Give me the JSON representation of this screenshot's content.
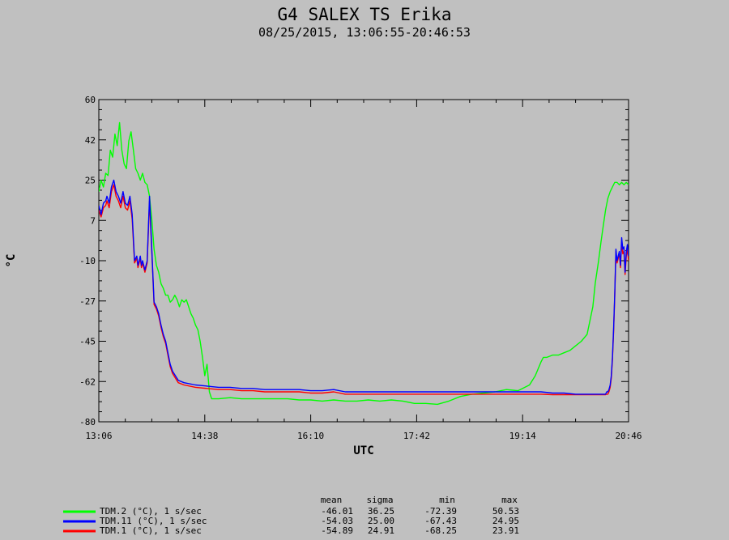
{
  "chart_data": {
    "type": "line",
    "title": "G4 SALEX TS Erika",
    "subtitle": "08/25/2015, 13:06:55-20:46:53",
    "xlabel": "UTC",
    "ylabel": "°C",
    "x_ticks": [
      "13:06",
      "14:38",
      "16:10",
      "17:42",
      "19:14",
      "20:46"
    ],
    "x_range_minutes": [
      786,
      1246
    ],
    "y_ticks": [
      60,
      42,
      25,
      7,
      -10,
      -27,
      -45,
      -62,
      -80
    ],
    "ylim": [
      -80,
      60
    ],
    "grid": false,
    "legend_placement": "bottom-left",
    "stats_headers": [
      "mean",
      "sigma",
      "min",
      "max"
    ],
    "series": [
      {
        "name": "TDM.2 (°C), 1 s/sec",
        "color": "#00ff00",
        "stats": [
          "-46.01",
          "36.25",
          "-72.39",
          "50.53"
        ],
        "x": [
          786,
          788,
          790,
          792,
          794,
          796,
          798,
          800,
          802,
          804,
          806,
          808,
          810,
          812,
          814,
          816,
          818,
          820,
          822,
          824,
          826,
          828,
          830,
          832,
          834,
          836,
          838,
          840,
          842,
          844,
          846,
          848,
          850,
          852,
          854,
          856,
          858,
          860,
          862,
          864,
          866,
          868,
          870,
          872,
          874,
          876,
          878,
          880,
          882,
          884,
          885,
          890,
          900,
          910,
          920,
          930,
          940,
          950,
          960,
          970,
          980,
          990,
          1000,
          1010,
          1020,
          1030,
          1040,
          1050,
          1060,
          1070,
          1080,
          1090,
          1100,
          1110,
          1120,
          1130,
          1140,
          1150,
          1160,
          1165,
          1170,
          1172,
          1175,
          1180,
          1185,
          1190,
          1195,
          1200,
          1205,
          1210,
          1215,
          1217,
          1220,
          1222,
          1224,
          1226,
          1228,
          1230,
          1232,
          1234,
          1236,
          1238,
          1240,
          1242,
          1244,
          1246
        ],
        "y": [
          20,
          25,
          22,
          28,
          27,
          38,
          35,
          45,
          40,
          50,
          38,
          32,
          30,
          42,
          46,
          38,
          30,
          28,
          25,
          28,
          24,
          23,
          18,
          8,
          -5,
          -12,
          -15,
          -20,
          -22,
          -25,
          -25,
          -28,
          -27,
          -25,
          -27,
          -30,
          -27,
          -28,
          -27,
          -30,
          -33,
          -35,
          -38,
          -40,
          -45,
          -52,
          -60,
          -55,
          -67,
          -70,
          -70,
          -70,
          -69.5,
          -70,
          -70,
          -70,
          -70,
          -70,
          -70.5,
          -70.5,
          -71,
          -70.5,
          -71,
          -71,
          -70.5,
          -71,
          -70.5,
          -71,
          -72,
          -72,
          -72.4,
          -71,
          -69,
          -68,
          -67.5,
          -67,
          -66,
          -66.5,
          -64,
          -60,
          -54,
          -52,
          -52,
          -51,
          -51,
          -50,
          -49,
          -47,
          -45,
          -42,
          -30,
          -20,
          -10,
          -2,
          5,
          12,
          17,
          20,
          22,
          24,
          24,
          23,
          24,
          23,
          24,
          23
        ]
      },
      {
        "name": "TDM.11 (°C), 1 s/sec",
        "color": "#0000ff",
        "stats": [
          "-54.03",
          "25.00",
          "-67.43",
          "24.95"
        ],
        "x": [
          786,
          788,
          790,
          792,
          793,
          795,
          797,
          799,
          801,
          803,
          805,
          807,
          809,
          811,
          813,
          815,
          817,
          819,
          820,
          821,
          822,
          823,
          824,
          826,
          828,
          830,
          832,
          834,
          836,
          838,
          840,
          842,
          844,
          846,
          848,
          850,
          855,
          860,
          870,
          880,
          890,
          900,
          910,
          920,
          930,
          940,
          950,
          960,
          970,
          980,
          990,
          1000,
          1010,
          1020,
          1030,
          1040,
          1050,
          1060,
          1070,
          1080,
          1090,
          1100,
          1110,
          1120,
          1130,
          1140,
          1150,
          1160,
          1170,
          1180,
          1190,
          1200,
          1210,
          1220,
          1225,
          1226,
          1227,
          1228,
          1229,
          1230,
          1231,
          1232,
          1233,
          1234,
          1235,
          1236,
          1237,
          1238,
          1239,
          1240,
          1241,
          1242,
          1243,
          1244,
          1245,
          1246
        ],
        "y": [
          14,
          10,
          15,
          16,
          18,
          15,
          22,
          25,
          20,
          18,
          15,
          20,
          15,
          14,
          18,
          10,
          -10,
          -8,
          -12,
          -10,
          -8,
          -12,
          -10,
          -14,
          -10,
          18,
          -5,
          -28,
          -30,
          -33,
          -38,
          -42,
          -45,
          -50,
          -55,
          -58,
          -62,
          -63,
          -64,
          -64.5,
          -65,
          -65,
          -65.5,
          -65.5,
          -66,
          -66,
          -66,
          -66,
          -66.5,
          -66.5,
          -66,
          -67,
          -67,
          -67,
          -67,
          -67,
          -67,
          -67,
          -67,
          -67,
          -67,
          -67,
          -67,
          -67,
          -67,
          -67,
          -67,
          -67,
          -67,
          -67.5,
          -67.5,
          -68,
          -68,
          -68,
          -68,
          -68,
          -67,
          -67,
          -66,
          -64,
          -60,
          -52,
          -40,
          -25,
          -5,
          -10,
          -8,
          -6,
          -12,
          0,
          -5,
          -4,
          -15,
          -6,
          -3,
          -8
        ]
      },
      {
        "name": "TDM.1 (°C), 1 s/sec",
        "color": "#ff0000",
        "stats": [
          "-54.89",
          "24.91",
          "-68.25",
          "23.91"
        ],
        "x": [
          786,
          788,
          790,
          792,
          793,
          795,
          797,
          799,
          801,
          803,
          805,
          807,
          809,
          811,
          813,
          815,
          817,
          819,
          820,
          821,
          822,
          823,
          824,
          826,
          828,
          830,
          832,
          834,
          836,
          838,
          840,
          842,
          844,
          846,
          848,
          850,
          855,
          860,
          870,
          880,
          890,
          900,
          910,
          920,
          930,
          940,
          950,
          960,
          970,
          980,
          990,
          1000,
          1010,
          1020,
          1030,
          1040,
          1050,
          1060,
          1070,
          1080,
          1090,
          1100,
          1110,
          1120,
          1130,
          1140,
          1150,
          1160,
          1170,
          1180,
          1190,
          1200,
          1210,
          1220,
          1225,
          1226,
          1227,
          1228,
          1229,
          1230,
          1231,
          1232,
          1233,
          1234,
          1235,
          1236,
          1237,
          1238,
          1239,
          1240,
          1241,
          1242,
          1243,
          1244,
          1245,
          1246
        ],
        "y": [
          12,
          9,
          13,
          14,
          16,
          13,
          20,
          23,
          18,
          16,
          13,
          18,
          13,
          12,
          16,
          8,
          -11,
          -9,
          -13,
          -11,
          -9,
          -13,
          -11,
          -15,
          -11,
          16,
          -6,
          -29,
          -31,
          -34,
          -39,
          -43,
          -46,
          -51,
          -56,
          -59,
          -63,
          -64,
          -65,
          -65.5,
          -66,
          -66,
          -66.5,
          -66.5,
          -67,
          -67,
          -67,
          -67,
          -67.5,
          -67.5,
          -67,
          -68,
          -68,
          -68,
          -68,
          -68,
          -68,
          -68,
          -68,
          -68,
          -68,
          -68,
          -68,
          -68,
          -68,
          -68,
          -68,
          -68,
          -68,
          -68.2,
          -68.2,
          -68.2,
          -68.2,
          -68.2,
          -68.2,
          -68.2,
          -68,
          -68,
          -67,
          -65,
          -61,
          -53,
          -41,
          -26,
          -6,
          -11,
          -9,
          -7,
          -13,
          -2,
          -7,
          -6,
          -16,
          -8,
          -5,
          -10
        ]
      }
    ]
  }
}
